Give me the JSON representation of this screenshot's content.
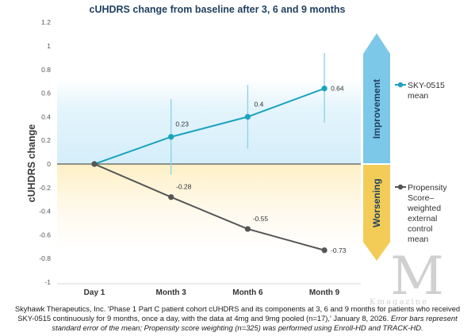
{
  "chart_data": {
    "type": "line",
    "title": "cUHDRS change from baseline after 3, 6 and 9 months",
    "xlabel": "",
    "ylabel": "cUHDRS change",
    "categories": [
      "Day 1",
      "Month 3",
      "Month 6",
      "Month 9"
    ],
    "y_ticks": [
      "1.2",
      "1",
      "0.8",
      "0.6",
      "0.4",
      "0.2",
      "0",
      "-0.2",
      "-0.4",
      "-0.6",
      "-0.8",
      "-1"
    ],
    "ylim": [
      -1,
      1.2
    ],
    "grid": false,
    "legend_position": "right",
    "series": [
      {
        "name": "SKY-0515 mean",
        "color": "#1aa3bf",
        "values": [
          0,
          0.23,
          0.4,
          0.64
        ],
        "labels": [
          "",
          "0.23",
          "0.4",
          "0.64"
        ],
        "error_bars": [
          null,
          [
            -0.09,
            0.55
          ],
          [
            0.13,
            0.67
          ],
          [
            0.35,
            0.94
          ]
        ]
      },
      {
        "name": "Propensity Score–weighted external control mean",
        "color": "#555555",
        "values": [
          0,
          -0.28,
          -0.55,
          -0.73
        ],
        "labels": [
          "",
          "-0.28",
          "-0.55",
          "-0.73"
        ],
        "error_bars": null
      }
    ],
    "regions": {
      "improvement": {
        "label": "Improvement",
        "color": "#7cc8e8"
      },
      "worsening": {
        "label": "Worsening",
        "color": "#f3cc57"
      }
    }
  },
  "caption": {
    "main": "Skyhawk Therapeutics, Inc. 'Phase 1 Part C patient cohort cUHDRS and its components at 3, 6 and 9 months for patients who received SKY-0515 continuously for 9 months, once a day, with the data at 4mg and 9mg pooled (n=17),' January 8, 2026.",
    "notes": "Error bars represent standard error of the mean; Propensity score weighting (n=325) was performed using Enroll-HD and TRACK-HD."
  },
  "watermark": {
    "big": "M",
    "small": "Kmagazine"
  }
}
